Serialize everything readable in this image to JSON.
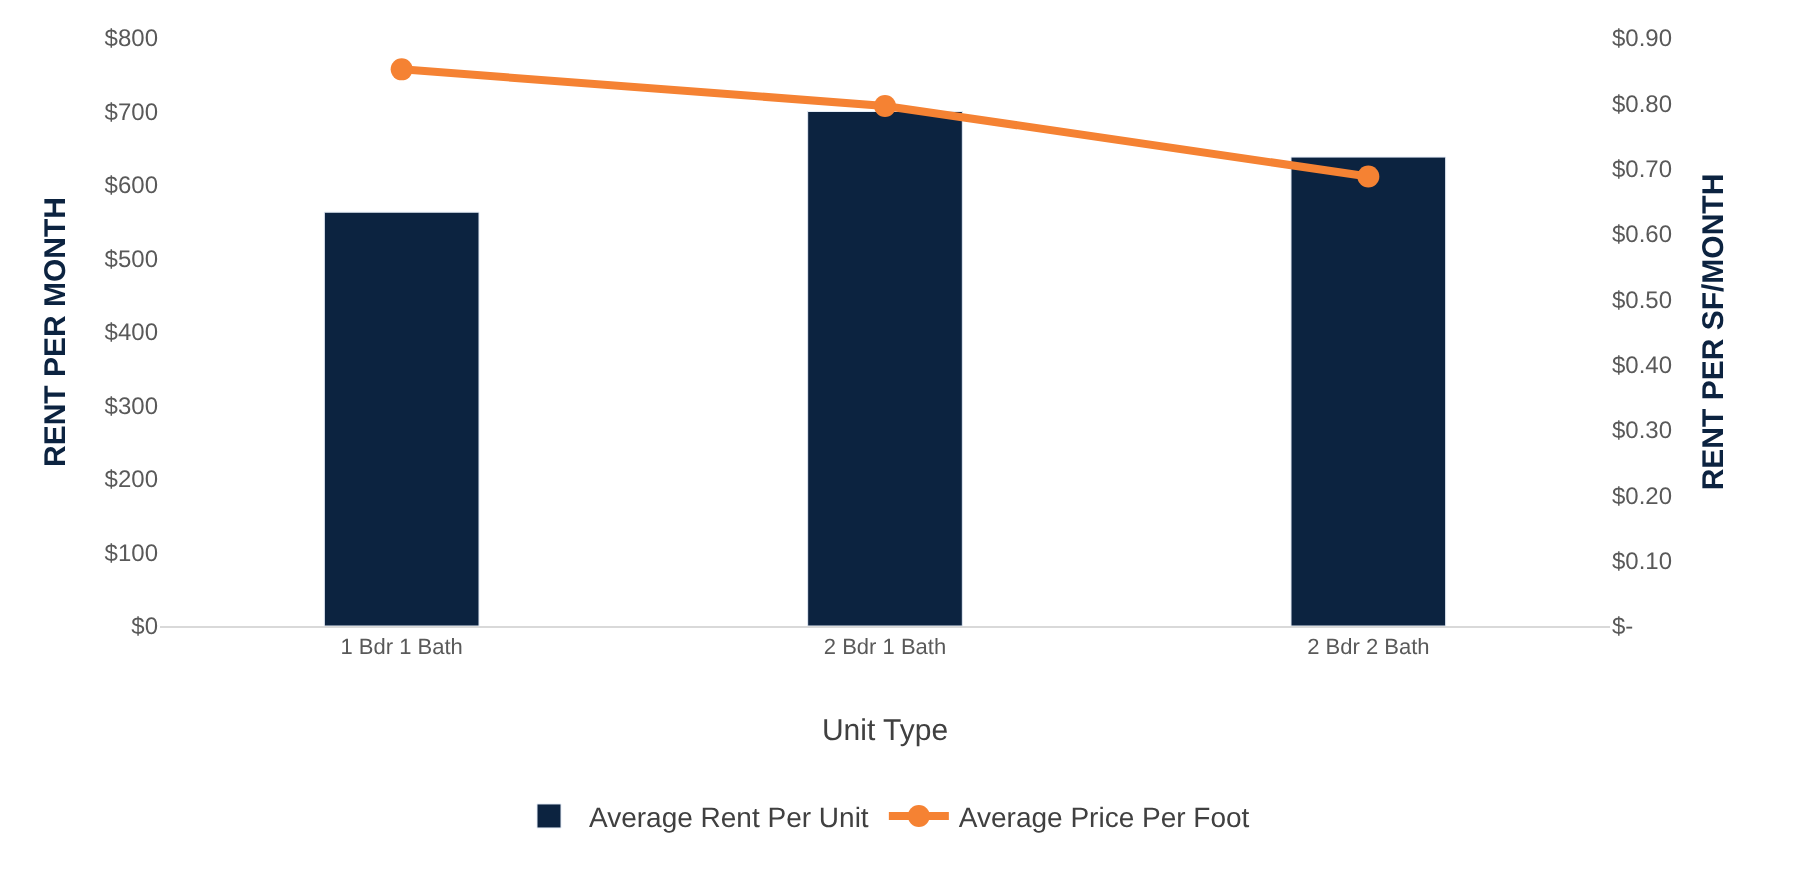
{
  "chart_data": {
    "type": "bar",
    "xlabel": "Unit Type",
    "ylabel": "RENT PER MONTH",
    "y2label": "RENT PER SF/MONTH",
    "categories": [
      "1 Bdr 1 Bath",
      "2 Bdr 1 Bath",
      "2 Bdr 2 Bath"
    ],
    "series": [
      {
        "name": "Average Rent Per Unit",
        "color": "#0c2340",
        "values": [
          563,
          700,
          638
        ]
      },
      {
        "name": "Average Price Per Foot",
        "color": "#f58233",
        "type": "line",
        "axis": "y2",
        "marker": "circle",
        "values": [
          0.852,
          0.796,
          0.688
        ]
      }
    ],
    "ylim": [
      0,
      800
    ],
    "yticks": [
      {
        "value": 0,
        "label": "$0"
      },
      {
        "value": 100,
        "label": "$100"
      },
      {
        "value": 200,
        "label": "$200"
      },
      {
        "value": 300,
        "label": "$300"
      },
      {
        "value": 400,
        "label": "$400"
      },
      {
        "value": 500,
        "label": "$500"
      },
      {
        "value": 600,
        "label": "$600"
      },
      {
        "value": 700,
        "label": "$700"
      },
      {
        "value": 800,
        "label": "$800"
      }
    ],
    "y2lim": [
      0,
      0.9
    ],
    "y2ticks": [
      {
        "value": 0,
        "label": "$-"
      },
      {
        "value": 0.1,
        "label": "$0.10"
      },
      {
        "value": 0.2,
        "label": "$0.20"
      },
      {
        "value": 0.3,
        "label": "$0.30"
      },
      {
        "value": 0.4,
        "label": "$0.40"
      },
      {
        "value": 0.5,
        "label": "$0.50"
      },
      {
        "value": 0.6,
        "label": "$0.60"
      },
      {
        "value": 0.7,
        "label": "$0.70"
      },
      {
        "value": 0.8,
        "label": "$0.80"
      },
      {
        "value": 0.9,
        "label": "$0.90"
      }
    ],
    "legend": "bottom"
  }
}
